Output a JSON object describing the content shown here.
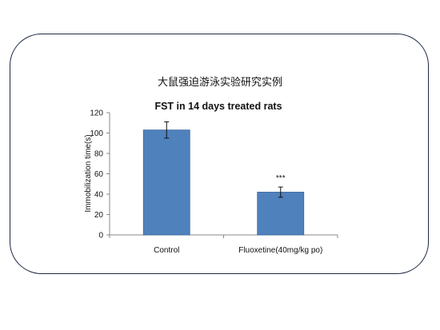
{
  "page": {
    "title": "大鼠强迫游泳实验研究实例"
  },
  "chart_data": {
    "type": "bar",
    "title": "FST in 14 days treated rats",
    "xlabel": "",
    "ylabel": "Immobilization time(s)",
    "categories": [
      "Control",
      "Fluoxetine(40mg/kg  po)"
    ],
    "series": [
      {
        "values": [
          103,
          42
        ],
        "errors": [
          8,
          5
        ],
        "annotations": [
          "",
          "***"
        ]
      }
    ],
    "ylim": [
      0,
      120
    ],
    "yticks": [
      0,
      20,
      40,
      60,
      80,
      100,
      120
    ],
    "colors": {
      "bar": "#4f81bd",
      "bar_edge": "#3a659b"
    },
    "grid": false,
    "legend": "none"
  }
}
